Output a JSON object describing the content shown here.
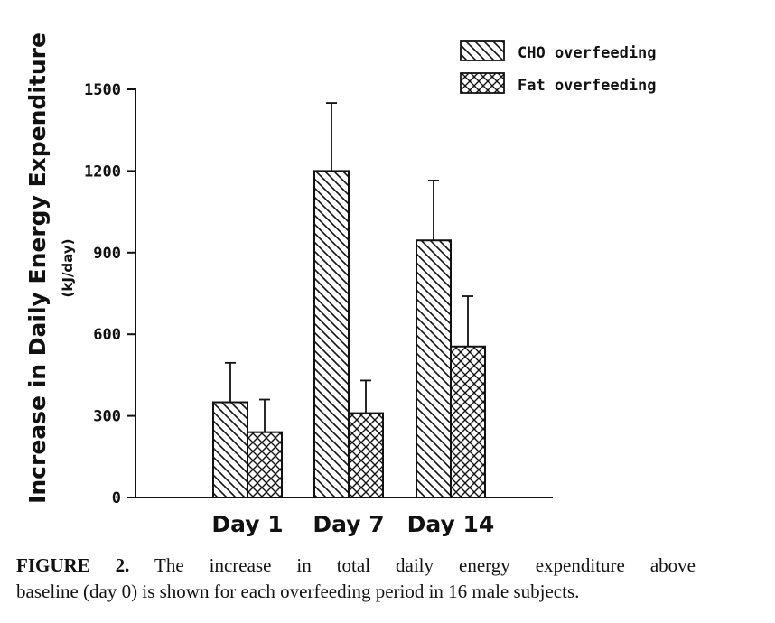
{
  "chart_data": {
    "type": "bar",
    "ylabel": "Increase in Daily Energy Expenditure",
    "ylabel_unit": "(kJ/day)",
    "xlabel": "",
    "ylim": [
      0,
      1500
    ],
    "yticks": [
      0,
      300,
      600,
      900,
      1200,
      1500
    ],
    "categories": [
      "Day 1",
      "Day 7",
      "Day 14"
    ],
    "series": [
      {
        "name": "CHO overfeeding",
        "pattern": "diagonal-hatch",
        "values": [
          350,
          1200,
          945
        ],
        "error": [
          145,
          250,
          220
        ]
      },
      {
        "name": "Fat overfeeding",
        "pattern": "cross-hatch",
        "values": [
          240,
          310,
          555
        ],
        "error": [
          120,
          120,
          185
        ]
      }
    ],
    "legend_position": "top-right",
    "grid": false,
    "colors": {
      "ink": "#111111",
      "bar_fill": "#ffffff"
    }
  },
  "caption": {
    "label": "FIGURE 2.",
    "line1": "The increase in total daily energy expenditure above",
    "line2": "baseline (day 0) is shown for each overfeeding period in 16 male subjects."
  }
}
